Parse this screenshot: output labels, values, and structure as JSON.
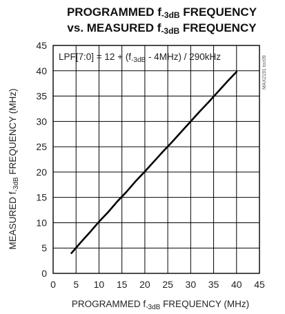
{
  "chart_data": {
    "type": "line",
    "title": "PROGRAMMED f-3dB FREQUENCY vs. MEASURED f-3dB FREQUENCY",
    "title_lines": [
      {
        "pre": "PROGRAMMED f",
        "sub": "-3dB",
        "post": " FREQUENCY"
      },
      {
        "pre": "vs. MEASURED f",
        "sub": "-3dB",
        "post": " FREQUENCY"
      }
    ],
    "xlabel": {
      "pre": "PROGRAMMED f",
      "sub": "-3dB",
      "post": " FREQUENCY (MHz)"
    },
    "ylabel": {
      "pre": "MEASURED f",
      "sub": "-3dB",
      "post": " FREQUENCY (MHz)"
    },
    "xlim": [
      0,
      45
    ],
    "ylim": [
      0,
      45
    ],
    "xticks": [
      0,
      5,
      10,
      15,
      20,
      25,
      30,
      35,
      40,
      45
    ],
    "yticks": [
      0,
      5,
      10,
      15,
      20,
      25,
      30,
      35,
      40,
      45
    ],
    "grid": true,
    "annotation": {
      "pre": "LPF[7:0] = 12 + (f",
      "sub": "-3dB",
      "post": " - 4MHz) / 290kHz"
    },
    "side_id": "MAX2191 toc09",
    "series": [
      {
        "x": [
          4,
          6,
          8,
          10,
          12,
          14,
          16,
          18,
          20,
          22,
          24,
          26,
          28,
          30,
          32,
          34,
          36,
          38,
          40
        ],
        "y": [
          4,
          6.1,
          8.1,
          10.2,
          12.1,
          14.2,
          16.1,
          18.2,
          20.1,
          22.1,
          24.1,
          26.0,
          28.0,
          30.0,
          32.0,
          33.9,
          35.9,
          37.9,
          39.8
        ]
      }
    ]
  }
}
